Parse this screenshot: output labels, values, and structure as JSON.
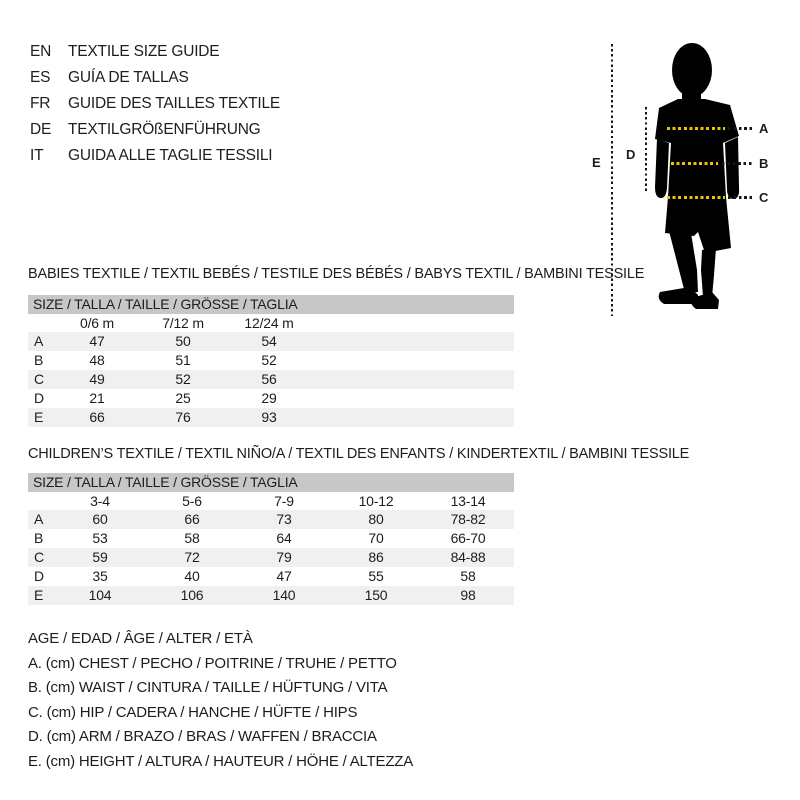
{
  "colors": {
    "accent_yellow": "#eac600",
    "table_header_gray": "#c7c7c7",
    "row_stripe_gray": "#f0f0f0",
    "text": "#1d1d1b",
    "silhouette": "#000000"
  },
  "languages": [
    {
      "code": "EN",
      "label": "TEXTILE SIZE GUIDE"
    },
    {
      "code": "ES",
      "label": "GUÍA DE TALLAS"
    },
    {
      "code": "FR",
      "label": "GUIDE DES TAILLES TEXTILE"
    },
    {
      "code": "DE",
      "label": "TEXTILGRÖßENFÜHRUNG"
    },
    {
      "code": "IT",
      "label": "GUIDA ALLE TAGLIE TESSILI"
    }
  ],
  "figure": {
    "labels": {
      "a": "A",
      "b": "B",
      "c": "C",
      "d": "D",
      "e": "E"
    }
  },
  "babies_table": {
    "title": "BABIES TEXTILE / TEXTIL BEBÉS / TESTILE DES BÉBÉS / BABYS TEXTIL / BAMBINI TESSILE",
    "header": "SIZE / TALLA / TAILLE / GRÖSSE / TAGLIA",
    "columns": [
      "0/6 m",
      "7/12 m",
      "12/24 m"
    ],
    "rows": [
      {
        "label": "A",
        "values": [
          "47",
          "50",
          "54"
        ]
      },
      {
        "label": "B",
        "values": [
          "48",
          "51",
          "52"
        ]
      },
      {
        "label": "C",
        "values": [
          "49",
          "52",
          "56"
        ]
      },
      {
        "label": "D",
        "values": [
          "21",
          "25",
          "29"
        ]
      },
      {
        "label": "E",
        "values": [
          "66",
          "76",
          "93"
        ]
      }
    ]
  },
  "children_table": {
    "title": "CHILDREN’S TEXTILE / TEXTIL NIÑO/A / TEXTIL DES ENFANTS / KINDERTEXTIL / BAMBINI TESSILE",
    "header": "SIZE / TALLA / TAILLE / GRÖSSE / TAGLIA",
    "columns": [
      "3-4",
      "5-6",
      "7-9",
      "10-12",
      "13-14"
    ],
    "rows": [
      {
        "label": "A",
        "values": [
          "60",
          "66",
          "73",
          "80",
          "78-82"
        ]
      },
      {
        "label": "B",
        "values": [
          "53",
          "58",
          "64",
          "70",
          "66-70"
        ]
      },
      {
        "label": "C",
        "values": [
          "59",
          "72",
          "79",
          "86",
          "84-88"
        ]
      },
      {
        "label": "D",
        "values": [
          "35",
          "40",
          "47",
          "55",
          "58"
        ]
      },
      {
        "label": "E",
        "values": [
          "104",
          "106",
          "140",
          "150",
          "98"
        ]
      }
    ]
  },
  "legend": {
    "lines": [
      "AGE / EDAD / ÂGE / ALTER / ETÀ",
      "A. (cm) CHEST / PECHO / POITRINE / TRUHE / PETTO",
      "B. (cm) WAIST / CINTURA / TAILLE / HÜFTUNG / VITA",
      "C. (cm) HIP / CADERA / HANCHE / HÜFTE / HIPS",
      "D. (cm) ARM / BRAZO / BRAS / WAFFEN / BRACCIA",
      "E. (cm) HEIGHT / ALTURA / HAUTEUR / HÖHE / ALTEZZA"
    ]
  }
}
